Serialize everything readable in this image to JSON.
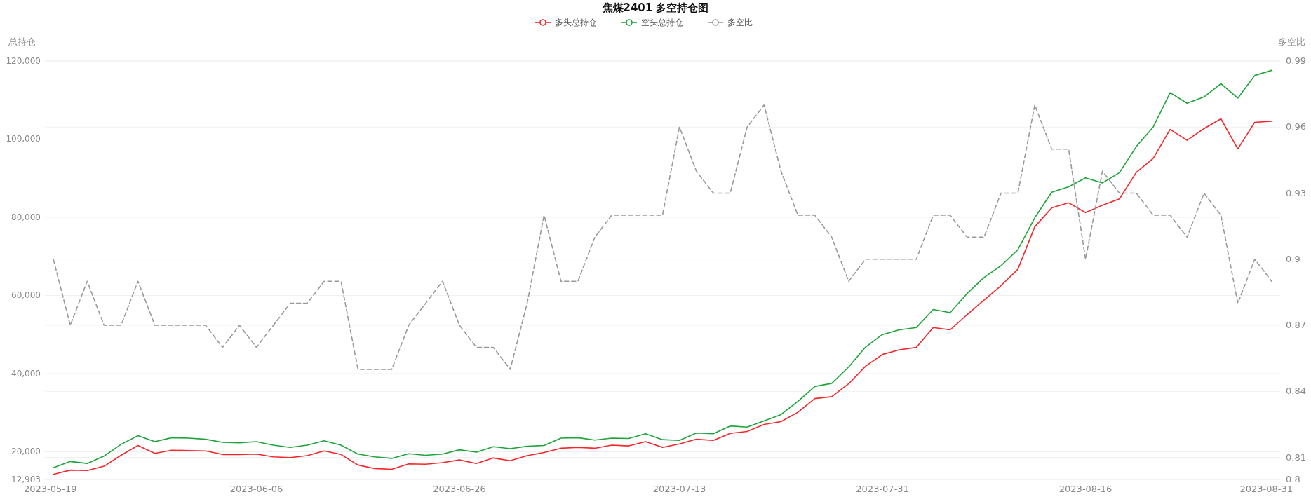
{
  "chart_data": {
    "type": "line",
    "title": "焦煤2401 多空持仓图",
    "ylabel": "总持仓",
    "y2label": "多空比",
    "legend": "top",
    "grid": true,
    "categories": [
      "2023-05-19",
      null,
      null,
      null,
      null,
      null,
      null,
      null,
      null,
      null,
      null,
      null,
      "2023-06-06",
      null,
      null,
      null,
      null,
      null,
      null,
      null,
      null,
      null,
      null,
      null,
      "2023-06-26",
      null,
      null,
      null,
      null,
      null,
      null,
      null,
      null,
      null,
      null,
      null,
      null,
      "2023-07-13",
      null,
      null,
      null,
      null,
      null,
      null,
      null,
      null,
      null,
      null,
      null,
      "2023-07-31",
      null,
      null,
      null,
      null,
      null,
      null,
      null,
      null,
      null,
      null,
      null,
      "2023-08-16",
      null,
      null,
      null,
      null,
      null,
      null,
      null,
      null,
      null,
      null,
      "2023-08-31"
    ],
    "ylim": [
      12903,
      120000
    ],
    "yticks": [
      {
        "value": 12903,
        "label": "12,903"
      },
      {
        "value": 20000,
        "label": "20,000"
      },
      {
        "value": 40000,
        "label": "40,000"
      },
      {
        "value": 60000,
        "label": "60,000"
      },
      {
        "value": 80000,
        "label": "80,000"
      },
      {
        "value": 100000,
        "label": "100,000"
      },
      {
        "value": 120000,
        "label": "120,000"
      }
    ],
    "y2lim": [
      0.8,
      0.99
    ],
    "y2ticks": [
      0.8,
      0.81,
      0.84,
      0.87,
      0.9,
      0.93,
      0.96,
      0.99
    ],
    "series": [
      {
        "name": "多头总持仓",
        "color": "#f5262a",
        "line_style": "solid",
        "values": [
          14200,
          15300,
          15200,
          16300,
          19100,
          21600,
          19600,
          20400,
          20300,
          20200,
          19300,
          19300,
          19400,
          18700,
          18500,
          19000,
          20200,
          19300,
          16600,
          15700,
          15500,
          16900,
          16800,
          17200,
          17900,
          17000,
          18400,
          17700,
          19000,
          19800,
          20900,
          21100,
          20900,
          21700,
          21500,
          22600,
          21100,
          22000,
          23200,
          22900,
          24700,
          25200,
          27000,
          27700,
          30100,
          33600,
          34100,
          37400,
          41900,
          44900,
          46100,
          46700,
          51800,
          51200,
          55100,
          58800,
          62500,
          66700,
          77600,
          82400,
          83700,
          81200,
          83100,
          84700,
          91500,
          95100,
          102500,
          99700,
          102700,
          105200,
          97500,
          104300,
          104600
        ]
      },
      {
        "name": "空头总持仓",
        "color": "#1ea43a",
        "line_style": "solid",
        "values": [
          15900,
          17500,
          17000,
          18900,
          21900,
          24100,
          22600,
          23600,
          23500,
          23200,
          22400,
          22300,
          22600,
          21700,
          21100,
          21700,
          22800,
          21700,
          19400,
          18700,
          18300,
          19500,
          19100,
          19400,
          20500,
          19900,
          21300,
          20800,
          21400,
          21600,
          23500,
          23600,
          23000,
          23500,
          23400,
          24600,
          23100,
          22900,
          24800,
          24600,
          26600,
          26300,
          27900,
          29500,
          32900,
          36700,
          37500,
          41700,
          46800,
          50000,
          51200,
          51800,
          56400,
          55600,
          60500,
          64600,
          67600,
          71700,
          79900,
          86400,
          87800,
          90100,
          88800,
          91400,
          98100,
          103100,
          111900,
          109200,
          110800,
          114200,
          110500,
          116300,
          117600
        ]
      },
      {
        "name": "多空比",
        "color": "#999999",
        "axis": "y2",
        "line_style": "dashed",
        "values": [
          0.9,
          0.87,
          0.89,
          0.87,
          0.87,
          0.89,
          0.87,
          0.87,
          0.87,
          0.87,
          0.86,
          0.87,
          0.86,
          0.87,
          0.88,
          0.88,
          0.89,
          0.89,
          0.85,
          0.85,
          0.85,
          0.87,
          0.88,
          0.89,
          0.87,
          0.86,
          0.86,
          0.85,
          0.88,
          0.92,
          0.89,
          0.89,
          0.91,
          0.92,
          0.92,
          0.92,
          0.92,
          0.96,
          0.94,
          0.93,
          0.93,
          0.96,
          0.97,
          0.94,
          0.92,
          0.92,
          0.91,
          0.89,
          0.9,
          0.9,
          0.9,
          0.9,
          0.92,
          0.92,
          0.91,
          0.91,
          0.93,
          0.93,
          0.97,
          0.95,
          0.95,
          0.9,
          0.94,
          0.93,
          0.93,
          0.92,
          0.92,
          0.91,
          0.93,
          0.92,
          0.88,
          0.9,
          0.89
        ]
      }
    ]
  }
}
